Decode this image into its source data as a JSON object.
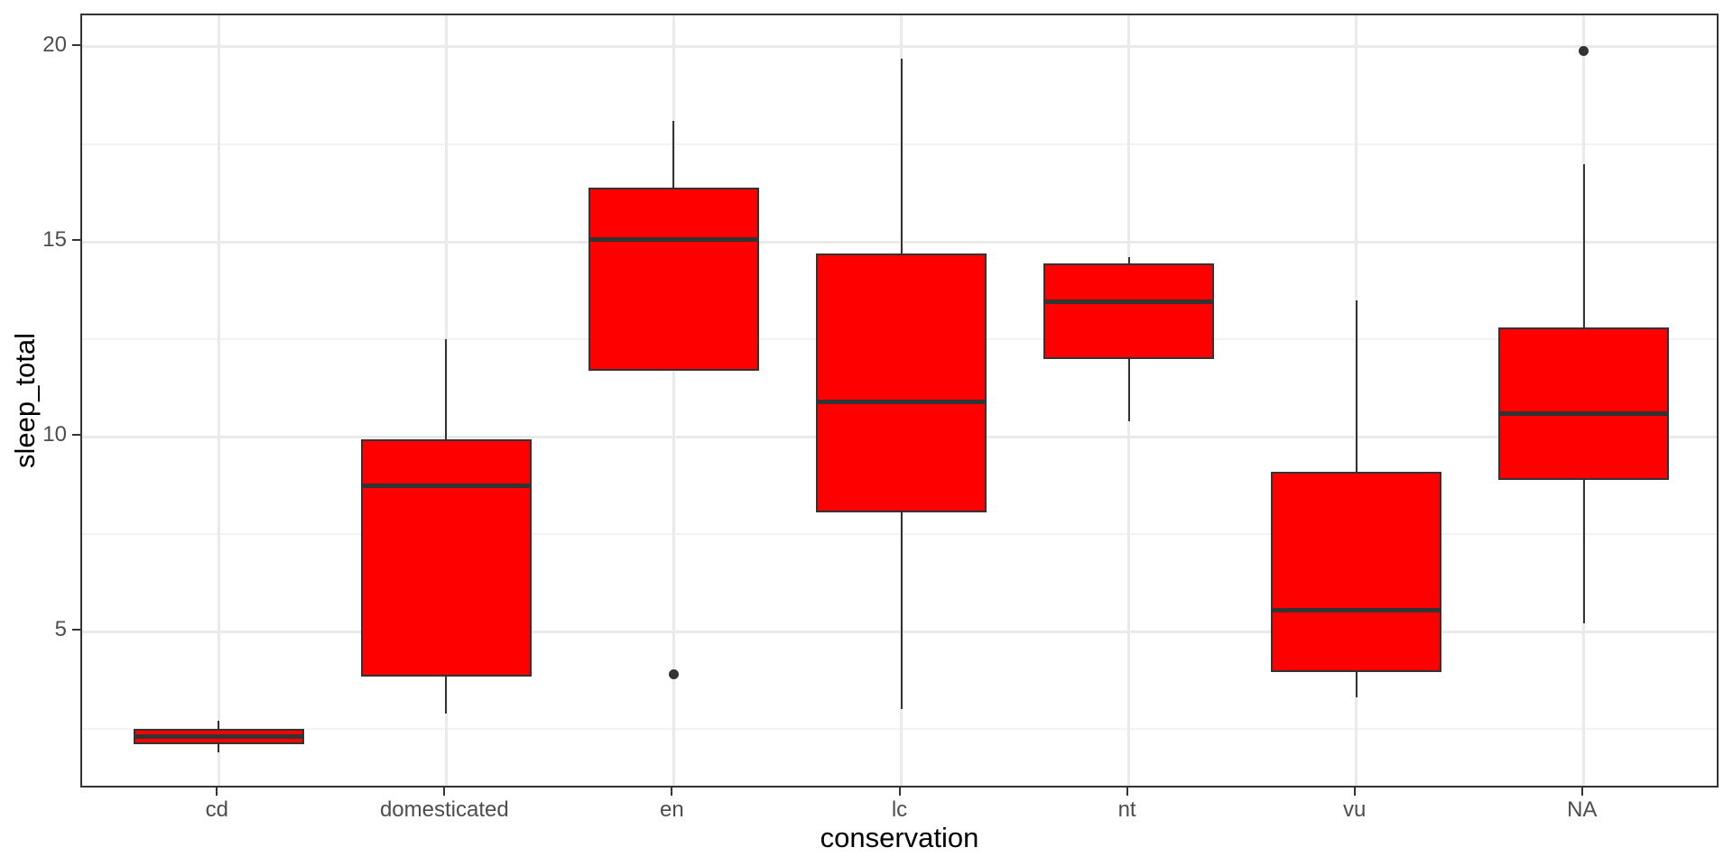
{
  "figure": {
    "background": "#ffffff"
  },
  "chart_data": {
    "type": "boxplot",
    "title": "",
    "xlabel": "conservation",
    "ylabel": "sleep_total",
    "categories": [
      "cd",
      "domesticated",
      "en",
      "lc",
      "nt",
      "vu",
      "NA"
    ],
    "y_ticks": [
      5,
      10,
      15,
      20
    ],
    "y_minor_ticks": [
      2.5,
      7.5,
      12.5,
      17.5
    ],
    "ylim": [
      0.95,
      20.81
    ],
    "grid": true,
    "legend": false,
    "series": [
      {
        "category": "cd",
        "lower": 1.9,
        "q1": 2.1,
        "median": 2.3,
        "q3": 2.5,
        "upper": 2.7,
        "outliers": []
      },
      {
        "category": "domesticated",
        "lower": 2.9,
        "q1": 3.85,
        "median": 8.75,
        "q3": 9.93,
        "upper": 12.5,
        "outliers": []
      },
      {
        "category": "en",
        "lower": 11.7,
        "q1": 11.7,
        "median": 15.05,
        "q3": 16.38,
        "upper": 18.1,
        "outliers": [
          3.9
        ]
      },
      {
        "category": "lc",
        "lower": 3.0,
        "q1": 8.05,
        "median": 10.9,
        "q3": 14.7,
        "upper": 19.7,
        "outliers": []
      },
      {
        "category": "nt",
        "lower": 10.4,
        "q1": 11.98,
        "median": 13.45,
        "q3": 14.45,
        "upper": 14.6,
        "outliers": []
      },
      {
        "category": "vu",
        "lower": 3.3,
        "q1": 3.95,
        "median": 5.55,
        "q3": 9.1,
        "upper": 13.5,
        "outliers": []
      },
      {
        "category": "NA",
        "lower": 5.2,
        "q1": 8.9,
        "median": 10.6,
        "q3": 12.8,
        "upper": 17.0,
        "outliers": [
          19.9
        ]
      }
    ],
    "colors": {
      "box_fill": "#ff0000",
      "box_line": "#333333",
      "grid_major": "#eaeaea",
      "grid_minor": "#f2f2f2",
      "panel_border": "#333333",
      "tick_label": "#4d4d4d",
      "axis_title": "#000000",
      "background": "#ffffff"
    }
  }
}
